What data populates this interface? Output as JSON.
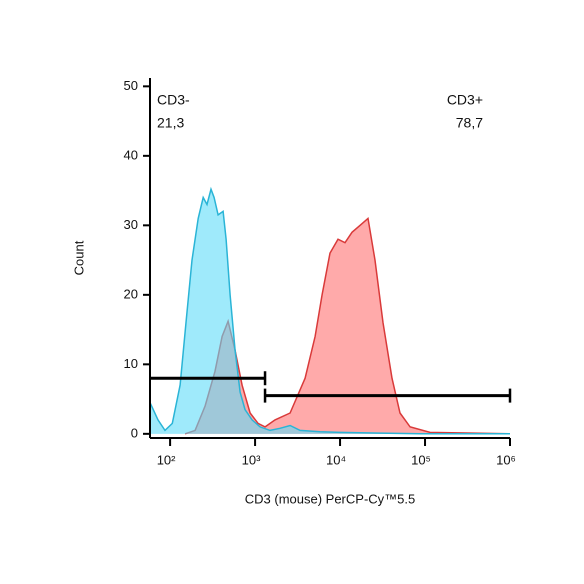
{
  "chart_data": {
    "type": "histogram",
    "xlabel": "CD3 (mouse) PerCP-Cy™5.5",
    "ylabel": "Count",
    "xscale": "log",
    "xlim": [
      58,
      1000000
    ],
    "xticks": [
      {
        "value": 100,
        "label": "10²"
      },
      {
        "value": 1000,
        "label": "10³"
      },
      {
        "value": 10000,
        "label": "10⁴"
      },
      {
        "value": 100000,
        "label": "10⁵"
      },
      {
        "value": 1000000,
        "label": "10⁶"
      }
    ],
    "ylim": [
      -0.6,
      51.2
    ],
    "yticks": [
      0,
      10,
      20,
      30,
      40,
      50
    ],
    "series": [
      {
        "color": "#d93a3a",
        "fill": "#ff9b9b",
        "x": [
          150,
          197,
          258,
          338,
          409,
          481,
          582,
          703,
          873,
          1084,
          1312,
          1718,
          2580,
          3874,
          5080,
          6140,
          7620,
          9470,
          11450,
          13830,
          17200,
          21300,
          25800,
          32000,
          40900,
          50800,
          66700,
          114500,
          1000000
        ],
        "values": [
          0,
          0.5,
          4,
          9,
          14,
          16.2,
          12,
          7,
          3,
          1.5,
          1,
          2,
          3,
          8,
          14,
          20,
          26,
          28,
          27.5,
          29,
          30,
          31,
          25,
          16,
          8,
          3,
          1,
          0.2,
          0
        ]
      },
      {
        "color": "#2ab4d6",
        "fill": "#5fdcf8",
        "x": [
          58,
          72,
          87,
          106,
          131,
          154,
          181,
          214,
          245,
          272,
          303,
          329,
          367,
          420,
          456,
          508,
          582,
          667,
          762,
          922,
          1145,
          1500,
          1967,
          2580,
          3383,
          5820,
          10000,
          29500,
          87300,
          1000000
        ],
        "values": [
          4.5,
          2,
          0.5,
          1.5,
          7,
          16,
          25,
          31,
          34,
          33,
          35.2,
          34,
          31.5,
          32,
          28,
          20,
          12,
          6,
          3.5,
          2,
          1,
          0.5,
          0.8,
          1.2,
          0.5,
          0.3,
          0.2,
          0.1,
          0,
          0
        ]
      }
    ],
    "gates": [
      {
        "name": "CD3-",
        "percent": "21,3",
        "x": [
          58,
          1310
        ],
        "y": 8
      },
      {
        "name": "CD3+",
        "percent": "78,7",
        "x": [
          1310,
          1000000
        ],
        "y": 5.5
      }
    ]
  }
}
